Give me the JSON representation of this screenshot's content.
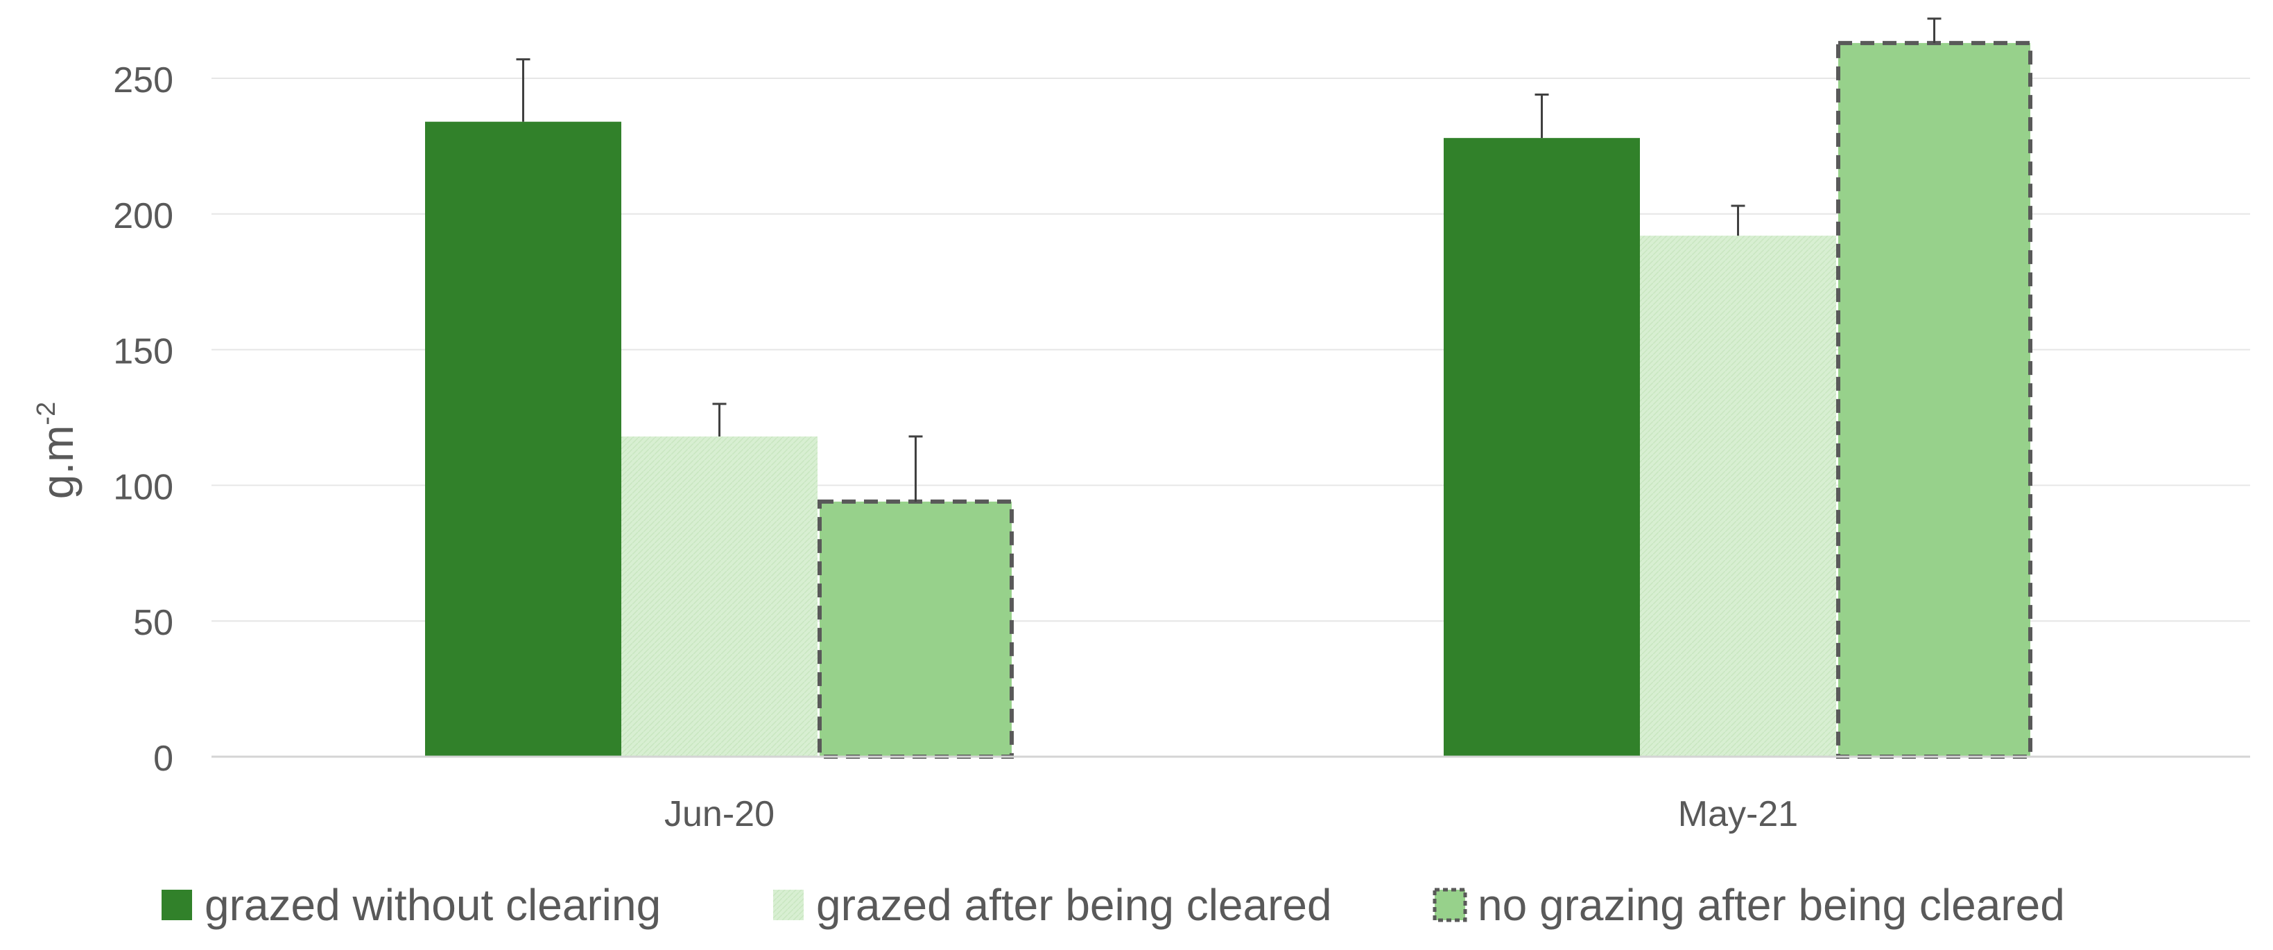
{
  "chart_data": {
    "type": "bar",
    "categories": [
      "Jun-20",
      "May-21"
    ],
    "series": [
      {
        "name": "grazed without clearing",
        "values": [
          234,
          228
        ],
        "errors": [
          23,
          16
        ],
        "color": "#31812a",
        "style": "solid"
      },
      {
        "name": "grazed after being cleared",
        "values": [
          118,
          192
        ],
        "errors": [
          12,
          11
        ],
        "color": "#d6efd0",
        "style": "light-pattern"
      },
      {
        "name": "no grazing after being cleared",
        "values": [
          94,
          263
        ],
        "errors": [
          24,
          9
        ],
        "color": "#97d18b",
        "style": "dashed-border"
      }
    ],
    "ylabel_main": "g.m",
    "ylabel_sup": "-2",
    "ylim": [
      0,
      250
    ],
    "yticks": [
      "0",
      "50",
      "100",
      "150",
      "200",
      "250"
    ],
    "grid": true,
    "legend_position": "bottom"
  }
}
